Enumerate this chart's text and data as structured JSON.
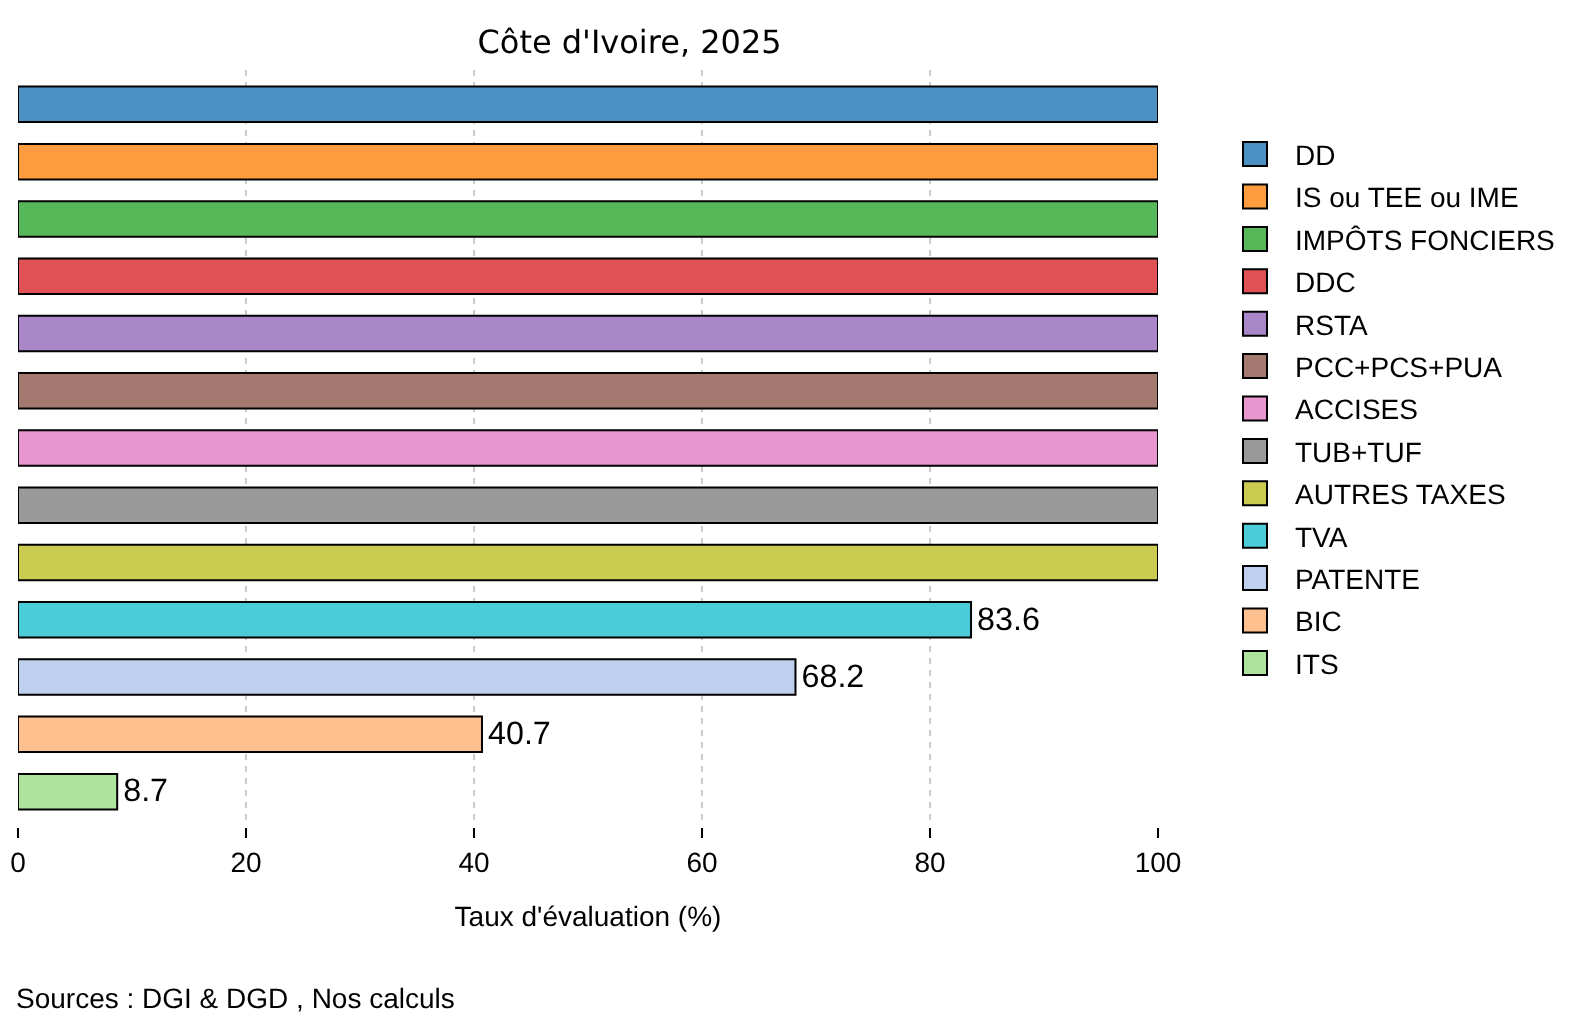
{
  "chart_data": {
    "type": "bar",
    "orientation": "horizontal",
    "title": "Côte d'Ivoire, 2025",
    "xlabel": "Taux d'évaluation (%)",
    "categories": [
      null,
      null,
      null,
      null,
      null,
      null,
      null,
      null,
      null,
      null,
      null,
      null,
      null
    ],
    "series": [
      {
        "name": "DD",
        "color": "#4a92c4",
        "values": [
          100,
          null,
          null,
          null,
          null,
          null,
          null,
          null,
          null,
          null,
          null,
          null,
          null
        ]
      },
      {
        "name": "IS ou TEE ou IME",
        "color": "#ff9c3f",
        "values": [
          null,
          100,
          null,
          null,
          null,
          null,
          null,
          null,
          null,
          null,
          null,
          null,
          null
        ]
      },
      {
        "name": "IMPÔTS FONCIERS",
        "color": "#57b85a",
        "values": [
          null,
          null,
          100,
          null,
          null,
          null,
          null,
          null,
          null,
          null,
          null,
          null,
          null
        ]
      },
      {
        "name": "DDC",
        "color": "#df5155",
        "values": [
          null,
          null,
          null,
          100,
          null,
          null,
          null,
          null,
          null,
          null,
          null,
          null,
          null
        ]
      },
      {
        "name": "RSTA",
        "color": "#a886c8",
        "values": [
          null,
          null,
          null,
          null,
          100,
          null,
          null,
          null,
          null,
          null,
          null,
          null,
          null
        ]
      },
      {
        "name": "PCC+PCS+PUA",
        "color": "#a47a70",
        "values": [
          null,
          null,
          null,
          null,
          null,
          100,
          null,
          null,
          null,
          null,
          null,
          null,
          null
        ]
      },
      {
        "name": "ACCISES",
        "color": "#e896cf",
        "values": [
          null,
          null,
          null,
          null,
          null,
          null,
          100,
          null,
          null,
          null,
          null,
          null,
          null
        ]
      },
      {
        "name": "TUB+TUF",
        "color": "#999999",
        "values": [
          null,
          null,
          null,
          null,
          null,
          null,
          null,
          100,
          null,
          null,
          null,
          null,
          null
        ]
      },
      {
        "name": "AUTRES TAXES",
        "color": "#cccb51",
        "values": [
          null,
          null,
          null,
          null,
          null,
          null,
          null,
          null,
          100,
          null,
          null,
          null,
          null
        ]
      },
      {
        "name": "TVA",
        "color": "#4ccbd9",
        "values": [
          null,
          null,
          null,
          null,
          null,
          null,
          null,
          null,
          null,
          83.6,
          null,
          null,
          null
        ],
        "value_labels": [
          null,
          null,
          null,
          null,
          null,
          null,
          null,
          null,
          null,
          "83.6",
          null,
          null,
          null
        ]
      },
      {
        "name": "PATENTE",
        "color": "#bfd0ee",
        "values": [
          null,
          null,
          null,
          null,
          null,
          null,
          null,
          null,
          null,
          null,
          68.2,
          null,
          null
        ],
        "value_labels": [
          null,
          null,
          null,
          null,
          null,
          null,
          null,
          null,
          null,
          null,
          "68.2",
          null,
          null
        ]
      },
      {
        "name": "BIC",
        "color": "#ffc08f",
        "values": [
          null,
          null,
          null,
          null,
          null,
          null,
          null,
          null,
          null,
          null,
          null,
          40.7,
          null
        ],
        "value_labels": [
          null,
          null,
          null,
          null,
          null,
          null,
          null,
          null,
          null,
          null,
          null,
          "40.7",
          null
        ]
      },
      {
        "name": "ITS",
        "color": "#aee39e",
        "values": [
          null,
          null,
          null,
          null,
          null,
          null,
          null,
          null,
          null,
          null,
          null,
          null,
          8.7
        ],
        "value_labels": [
          null,
          null,
          null,
          null,
          null,
          null,
          null,
          null,
          null,
          null,
          null,
          null,
          "8.7"
        ]
      }
    ],
    "xlim": [
      0,
      100
    ],
    "xticks": [
      0,
      20,
      40,
      60,
      80,
      100
    ],
    "grid": "x",
    "legend": "right",
    "tick_labels": "x",
    "annotations": [
      "Sources : DGI & DGD , Nos calculs"
    ]
  }
}
